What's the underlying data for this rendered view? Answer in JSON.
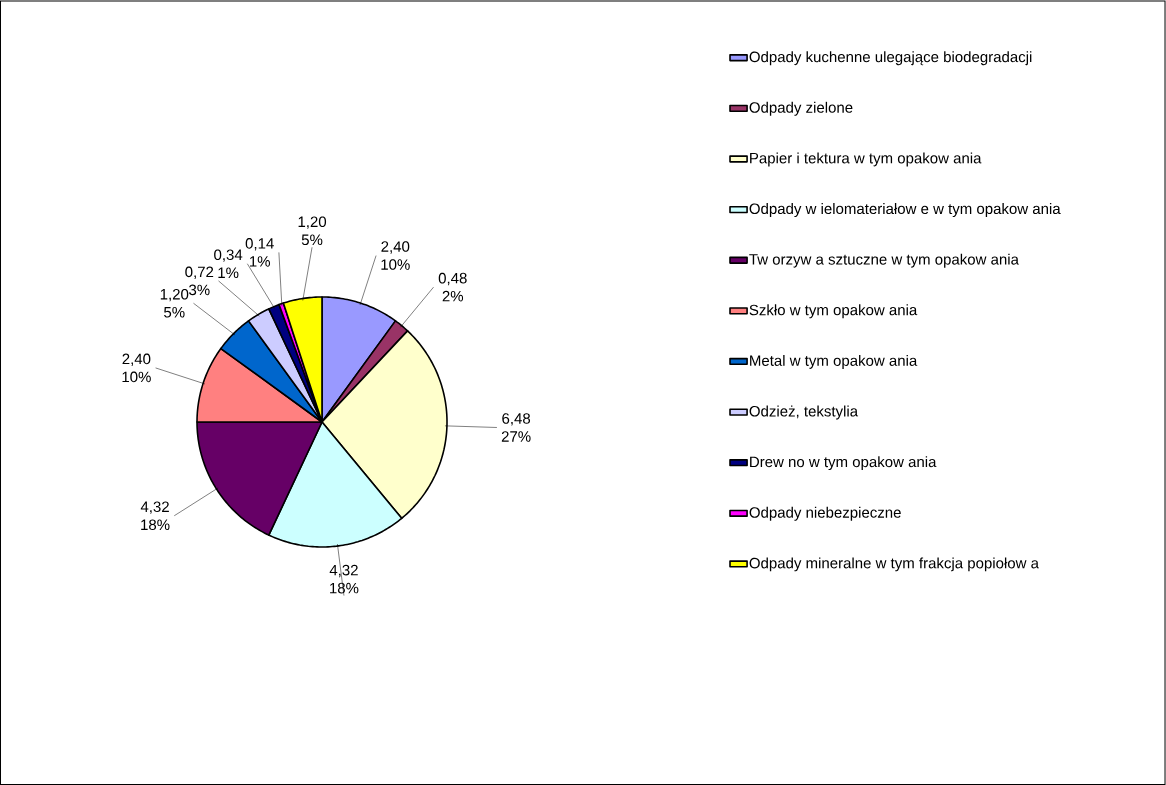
{
  "chart_data": {
    "type": "pie",
    "categories": [
      "Odpady kuchenne ulegające biodegradacji",
      "Odpady zielone",
      "Papier i tektura w  tym opakow ania",
      "Odpady w ielomateriałow e w  tym opakow ania",
      "Tw orzyw a sztuczne w  tym opakow ania",
      "Szkło w  tym opakow ania",
      "Metal w  tym opakow ania",
      "Odzież, tekstylia",
      "Drew no w  tym opakow ania",
      "Odpady niebezpieczne",
      "Odpady mineralne w  tym frakcja popiołow a"
    ],
    "values": [
      2.4,
      0.48,
      6.48,
      4.32,
      4.32,
      2.4,
      1.2,
      0.72,
      0.34,
      0.14,
      1.2
    ],
    "colors": [
      "#9999ff",
      "#993366",
      "#ffffcc",
      "#ccffff",
      "#660066",
      "#ff8080",
      "#0066cc",
      "#ccccff",
      "#000080",
      "#ff00ff",
      "#ffff00"
    ],
    "value_labels": [
      "2,40 10%",
      "0,48 2%",
      "6,48 27%",
      "4,32 18%",
      "4,32 18%",
      "2,40 10%",
      "1,20 5%",
      "0,72 3%",
      "0,34 1%",
      "0,14 1%",
      "1,20 5%"
    ],
    "legend": "right"
  }
}
